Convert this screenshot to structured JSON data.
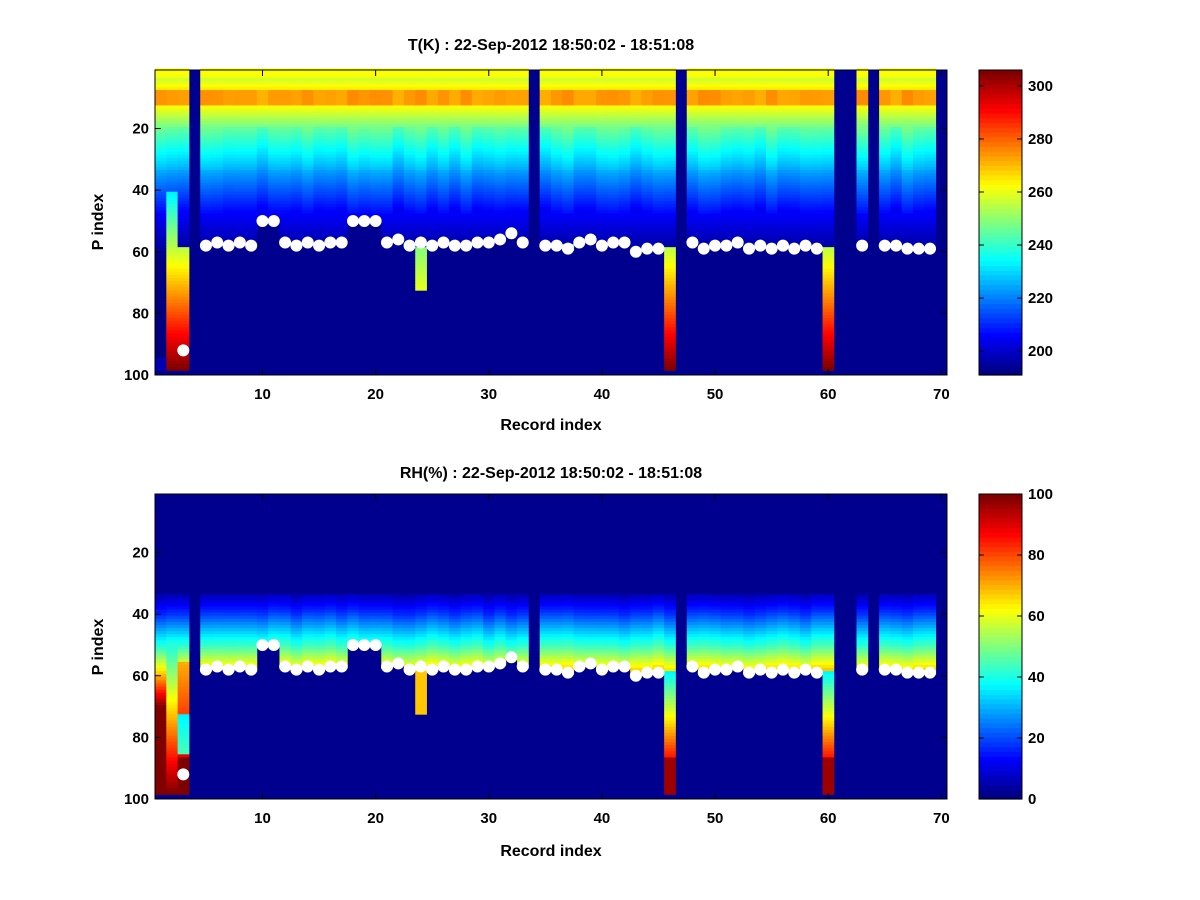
{
  "chart_data": [
    {
      "type": "heatmap",
      "variable": "T",
      "title": "T(K) : 22-Sep-2012 18:50:02 - 18:51:08",
      "xlabel": "Record index",
      "ylabel": "P index",
      "xlim": [
        0.5,
        70.5
      ],
      "ylim": [
        1,
        100
      ],
      "y_reversed": true,
      "xticks": [
        10,
        20,
        30,
        40,
        50,
        60,
        70
      ],
      "yticks": [
        20,
        40,
        60,
        80,
        100
      ],
      "colormap": "jet",
      "clim": [
        191,
        306
      ],
      "colorbar_ticks": [
        200,
        220,
        240,
        260,
        280,
        300
      ],
      "masked_columns": [
        4,
        34,
        47,
        61,
        62,
        64,
        70
      ],
      "surface_p_index": [
        null,
        null,
        92,
        null,
        58,
        57,
        58,
        57,
        58,
        50,
        50,
        57,
        58,
        57,
        58,
        57,
        57,
        50,
        50,
        50,
        57,
        56,
        58,
        57,
        58,
        57,
        58,
        58,
        57,
        57,
        56,
        54,
        57,
        null,
        58,
        58,
        59,
        57,
        56,
        58,
        57,
        57,
        60,
        59,
        59,
        null,
        null,
        57,
        59,
        58,
        58,
        57,
        59,
        58,
        59,
        58,
        59,
        58,
        59,
        null,
        null,
        null,
        58,
        null,
        58,
        58,
        59,
        59,
        59,
        null
      ],
      "notes": "Temperature profiles; warm layer near P index 8-12, cold below. White dots mark surface P index per record."
    },
    {
      "type": "heatmap",
      "variable": "RH",
      "title": "RH(%) : 22-Sep-2012 18:50:02 - 18:51:08",
      "xlabel": "Record index",
      "ylabel": "P index",
      "xlim": [
        0.5,
        70.5
      ],
      "ylim": [
        1,
        100
      ],
      "y_reversed": true,
      "xticks": [
        10,
        20,
        30,
        40,
        50,
        60,
        70
      ],
      "yticks": [
        20,
        40,
        60,
        80,
        100
      ],
      "colormap": "jet",
      "clim": [
        0,
        100
      ],
      "colorbar_ticks": [
        0,
        20,
        40,
        60,
        80,
        100
      ],
      "masked_columns": [
        4,
        34,
        47,
        61,
        62,
        64,
        70
      ],
      "surface_p_index": [
        null,
        null,
        92,
        null,
        58,
        57,
        58,
        57,
        58,
        50,
        50,
        57,
        58,
        57,
        58,
        57,
        57,
        50,
        50,
        50,
        57,
        56,
        58,
        57,
        58,
        57,
        58,
        58,
        57,
        57,
        56,
        54,
        57,
        null,
        58,
        58,
        59,
        57,
        56,
        58,
        57,
        57,
        60,
        59,
        59,
        null,
        null,
        57,
        59,
        58,
        58,
        57,
        59,
        58,
        59,
        58,
        59,
        58,
        59,
        null,
        null,
        null,
        58,
        null,
        58,
        58,
        59,
        59,
        59,
        null
      ],
      "notes": "Relative humidity profiles; moist layer just above surface (P index ~40-58), saturated near bottom for some columns."
    }
  ]
}
